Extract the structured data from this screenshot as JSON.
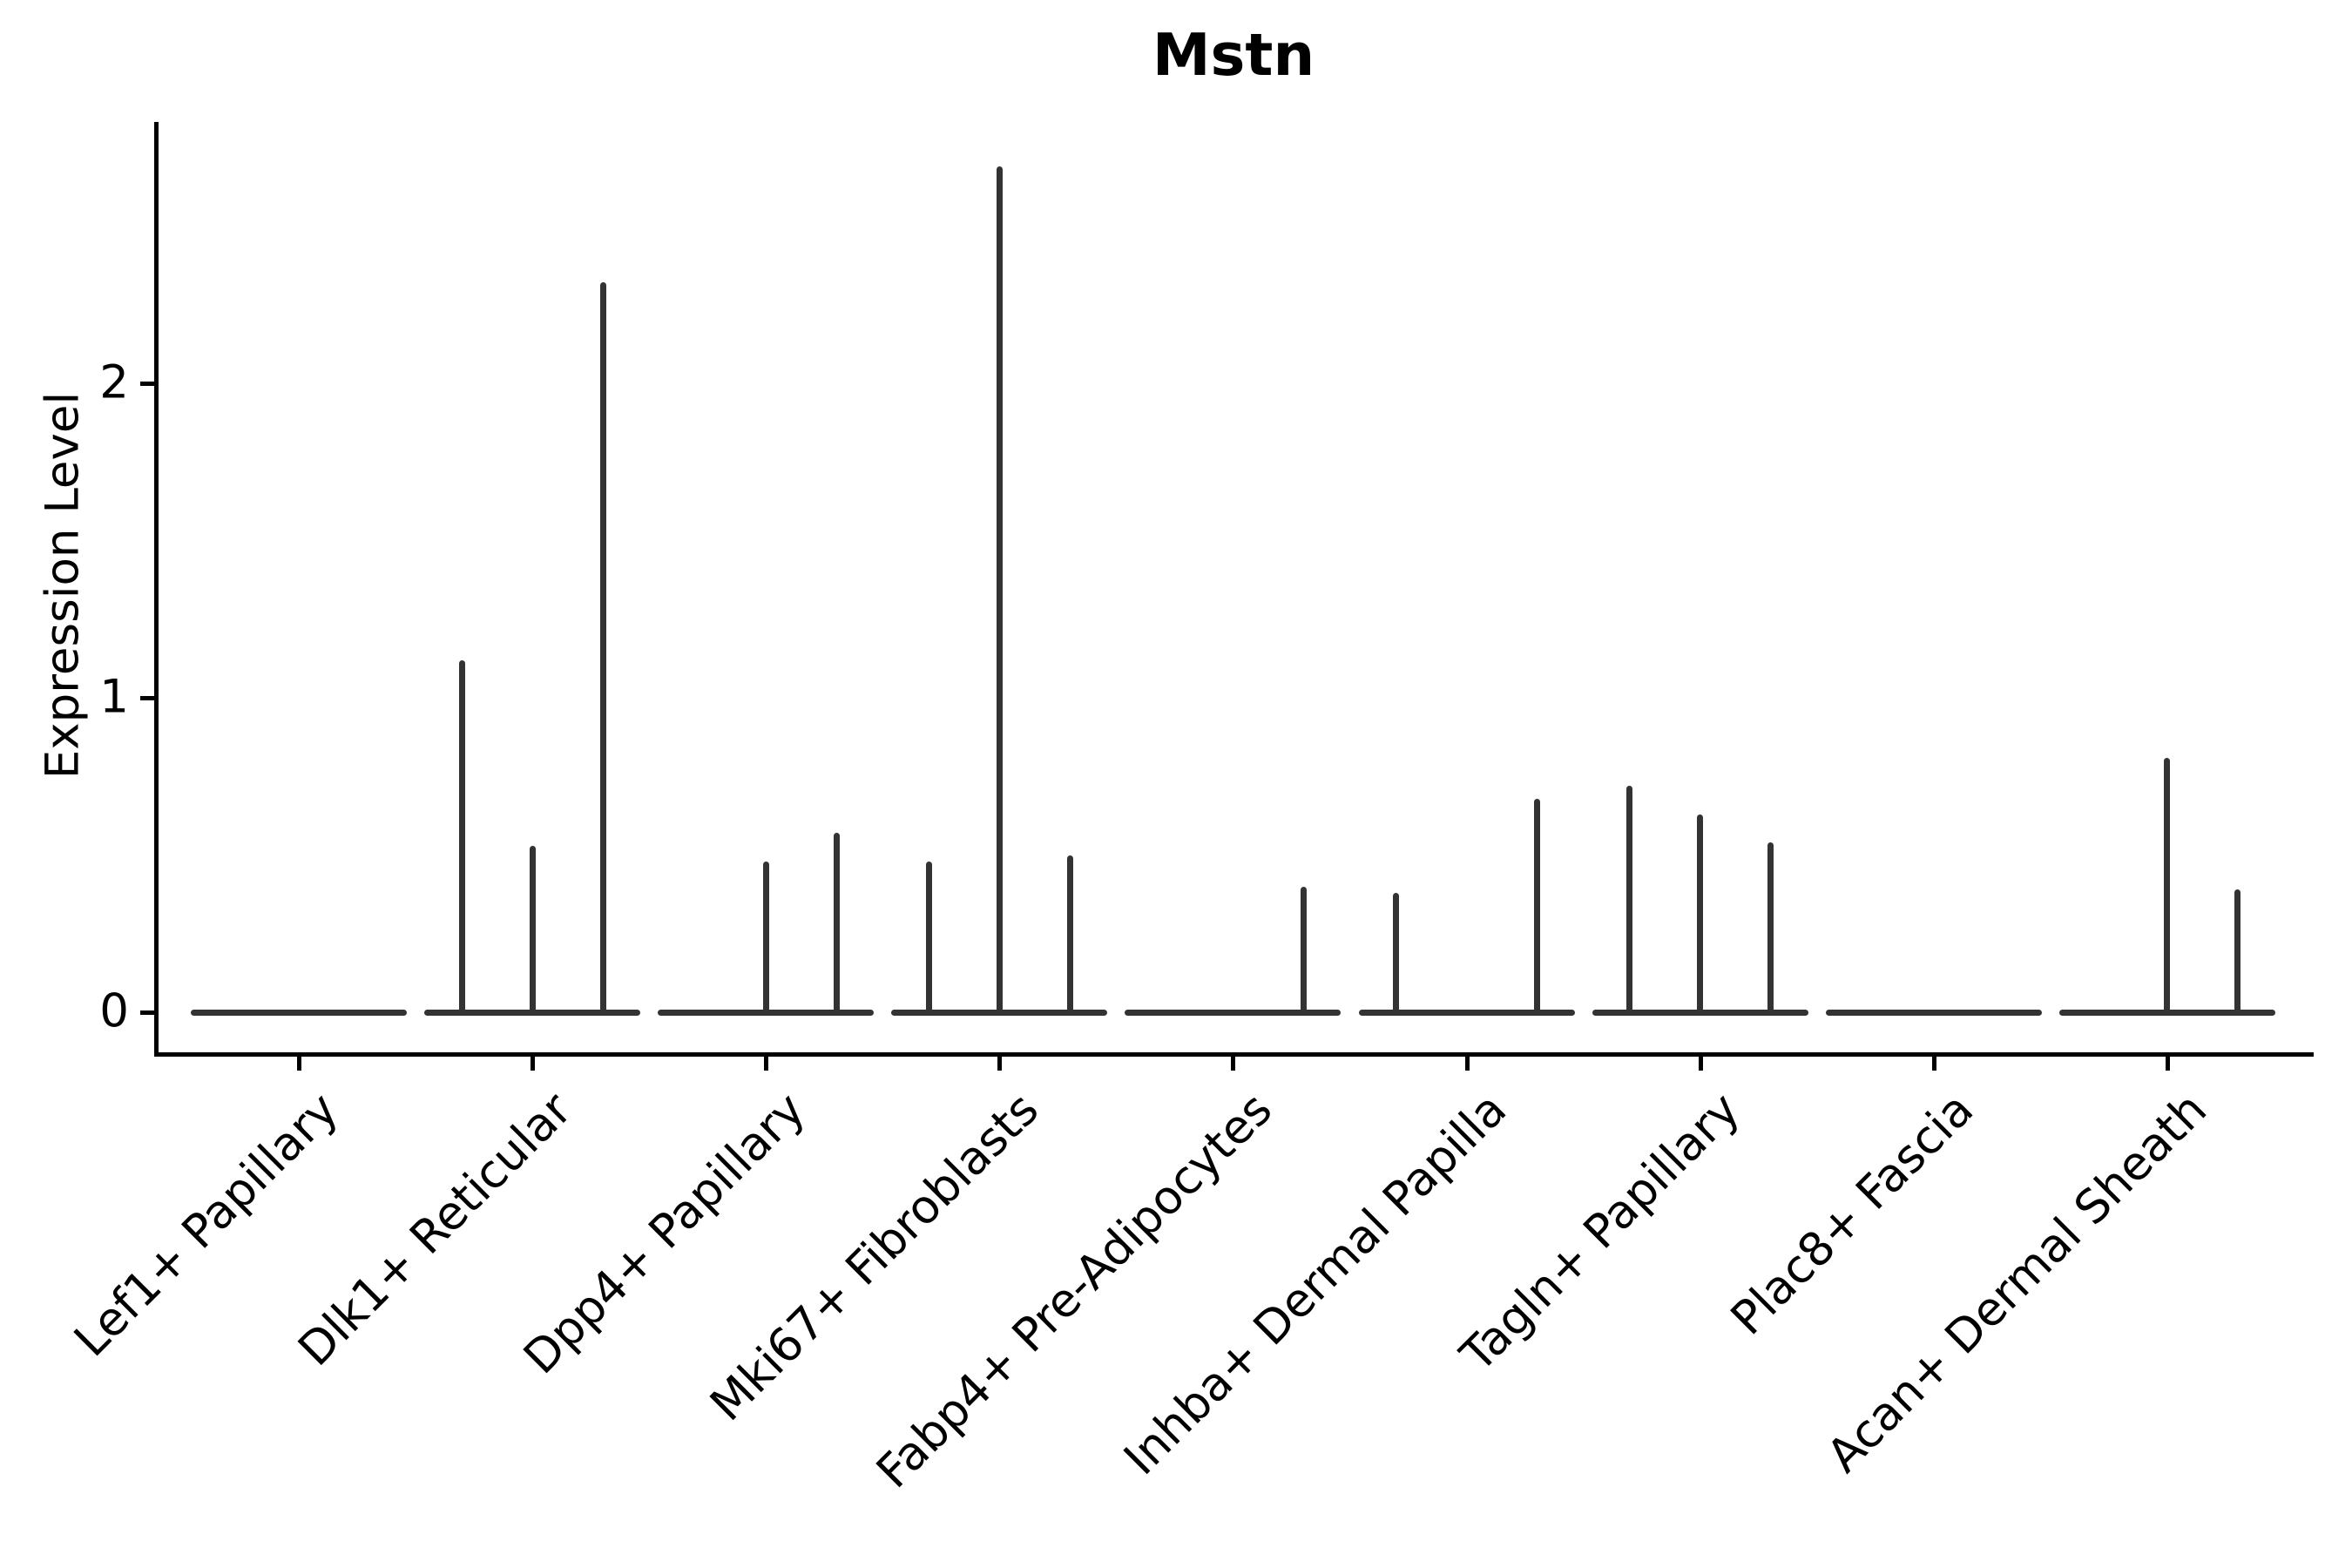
{
  "chart_data": {
    "type": "violin",
    "title": "Mstn",
    "ylabel": "Expression Level",
    "xlabel": "",
    "yticks": [
      0,
      1,
      2
    ],
    "ylim": [
      0,
      2.83
    ],
    "grid": false,
    "legend": "none",
    "ink_color": "#333333",
    "axis_color": "#000000",
    "background_color": "#ffffff",
    "categories": [
      "Lef1+ Papillary",
      "Dlk1+ Reticular",
      "Dpp4+ Papillary",
      "Mki67+ Fibroblasts",
      "Fabp4+ Pre-Adipocytes",
      "Inhba+ Dermal Papilla",
      "Tagln+ Papillary",
      "Plac8+ Fascia",
      "Acan+ Dermal Sheath"
    ],
    "sub_violin_slots": [
      -1,
      0,
      1
    ],
    "baseline_value": 0,
    "violins": [
      {
        "category": "Lef1+ Papillary",
        "spikes": []
      },
      {
        "category": "Dlk1+ Reticular",
        "spikes": [
          {
            "slot": -1,
            "max": 1.12
          },
          {
            "slot": 0,
            "max": 0.53
          },
          {
            "slot": 1,
            "max": 2.32
          }
        ]
      },
      {
        "category": "Dpp4+ Papillary",
        "spikes": [
          {
            "slot": 0,
            "max": 0.48
          },
          {
            "slot": 1,
            "max": 0.57
          }
        ]
      },
      {
        "category": "Mki67+ Fibroblasts",
        "spikes": [
          {
            "slot": -1,
            "max": 0.48
          },
          {
            "slot": 0,
            "max": 2.69
          },
          {
            "slot": 1,
            "max": 0.5
          }
        ]
      },
      {
        "category": "Fabp4+ Pre-Adipocytes",
        "spikes": [
          {
            "slot": 1,
            "max": 0.4
          }
        ]
      },
      {
        "category": "Inhba+ Dermal Papilla",
        "spikes": [
          {
            "slot": -1,
            "max": 0.38
          },
          {
            "slot": 1,
            "max": 0.68
          }
        ]
      },
      {
        "category": "Tagln+ Papillary",
        "spikes": [
          {
            "slot": -1,
            "max": 0.72
          },
          {
            "slot": 0,
            "max": 0.63
          },
          {
            "slot": 1,
            "max": 0.54
          }
        ]
      },
      {
        "category": "Plac8+ Fascia",
        "spikes": []
      },
      {
        "category": "Acan+ Dermal Sheath",
        "spikes": [
          {
            "slot": 0,
            "max": 0.81
          },
          {
            "slot": 1,
            "max": 0.39
          }
        ]
      }
    ]
  }
}
